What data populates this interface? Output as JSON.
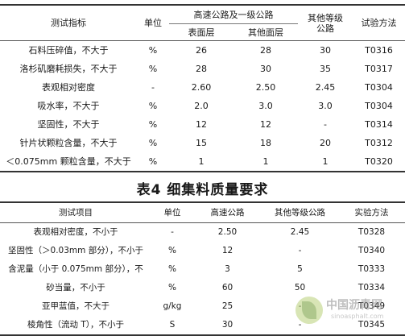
{
  "table1": {
    "headers": {
      "indicator": "测试指标",
      "unit": "单位",
      "group": "高速公路及一级公路",
      "sub_surface": "表面层",
      "sub_other": "其他面层",
      "other_grade_line1": "其他等级",
      "other_grade_line2": "公路",
      "method": "试验方法"
    },
    "rows": [
      [
        "石料压碎值，不大于",
        "%",
        "26",
        "28",
        "30",
        "T0316"
      ],
      [
        "洛杉矶磨耗损失，不大于",
        "%",
        "28",
        "30",
        "35",
        "T0317"
      ],
      [
        "表观相对密度",
        "-",
        "2.60",
        "2.50",
        "2.45",
        "T0304"
      ],
      [
        "吸水率，不大于",
        "%",
        "2.0",
        "3.0",
        "3.0",
        "T0304"
      ],
      [
        "坚固性，不大于",
        "%",
        "12",
        "12",
        "-",
        "T0314"
      ],
      [
        "针片状颗粒含量，不大于",
        "%",
        "15",
        "18",
        "20",
        "T0312"
      ],
      [
        "＜0.075mm 颗粒含量，不大于",
        "%",
        "1",
        "1",
        "1",
        "T0320"
      ]
    ]
  },
  "title2": "表4 细集料质量要求",
  "table2": {
    "headers": [
      "测试项目",
      "单位",
      "高速公路",
      "其他等级公路",
      "实验方法"
    ],
    "rows": [
      [
        "表观相对密度，不小于",
        "-",
        "2.50",
        "2.45",
        "T0328"
      ],
      [
        "坚固性（＞0.03mm 部分），不小于",
        "%",
        "12",
        "-",
        "T0340"
      ],
      [
        "含泥量（小于 0.075mm 部分），不",
        "%",
        "3",
        "5",
        "T0333"
      ],
      [
        "砂当量，不小于",
        "%",
        "60",
        "50",
        "T0334"
      ],
      [
        "亚甲蓝值，不大于",
        "g/kg",
        "25",
        "-",
        "T0349"
      ],
      [
        "棱角性（流动 T），不小于",
        "S",
        "30",
        "-",
        "T0345"
      ]
    ]
  },
  "watermark": {
    "text": "中国沥青网",
    "url": "sinoasphalt.com"
  }
}
